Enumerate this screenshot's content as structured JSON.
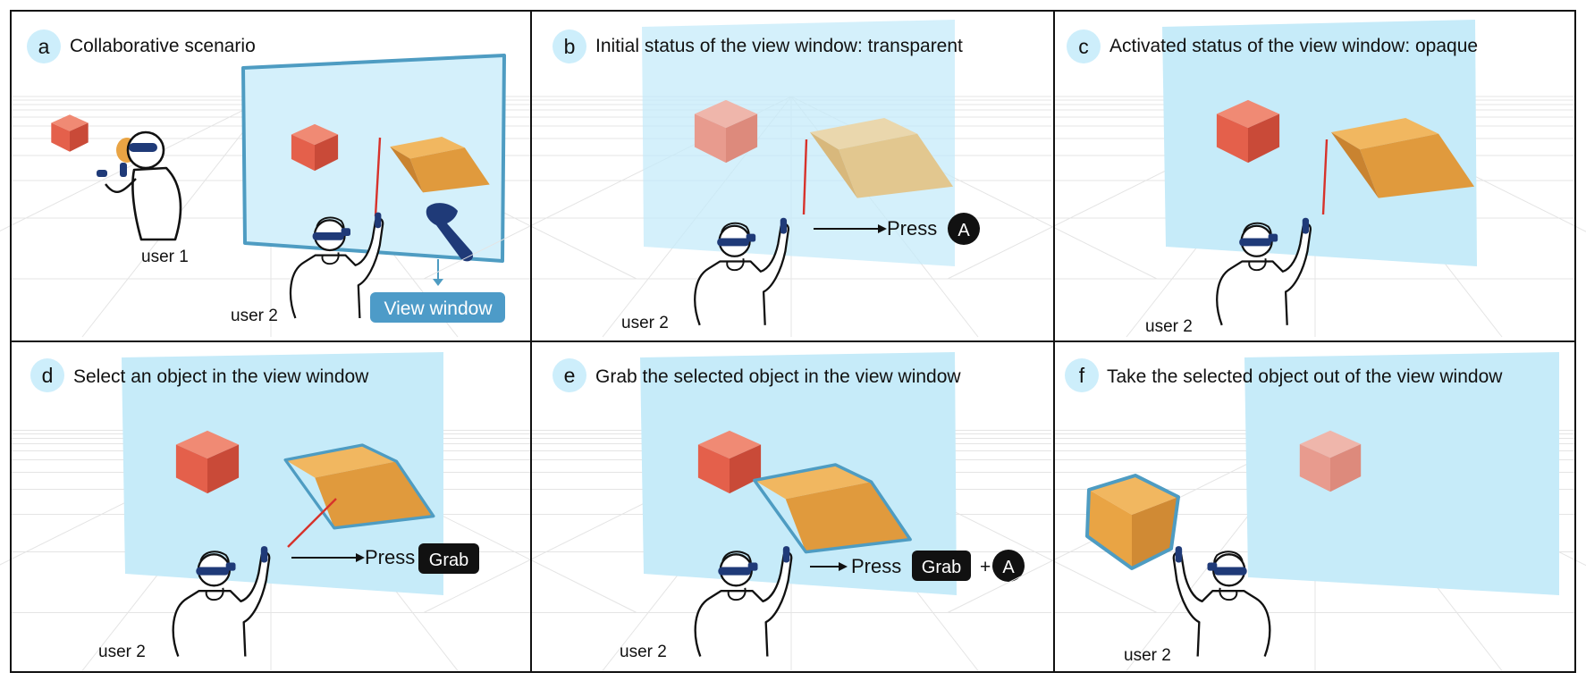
{
  "colors": {
    "badge": "#cdeefb",
    "view_window": "#c6ebf9",
    "frame_stroke": "#4e9cc2",
    "red_cube": "#e4604b",
    "orange_box": "#e9a444",
    "controller": "#1f3a78",
    "ray": "#d7322b",
    "tag_bg": "#4d9bc8",
    "black": "#111111"
  },
  "panels": [
    {
      "id": "a",
      "badge": "a",
      "title": "Collaborative scenario",
      "user_labels": [
        "user 1",
        "user 2"
      ],
      "tag": "View window"
    },
    {
      "id": "b",
      "badge": "b",
      "title": "Initial status of the view window: transparent",
      "user_label": "user 2",
      "action_word": "Press",
      "action_key": "A"
    },
    {
      "id": "c",
      "badge": "c",
      "title": "Activated status of the view window: opaque",
      "user_label": "user 2"
    },
    {
      "id": "d",
      "badge": "d",
      "title": "Select an object in the view window",
      "user_label": "user 2",
      "action_word": "Press",
      "action_key": "Grab"
    },
    {
      "id": "e",
      "badge": "e",
      "title": "Grab the selected object in the view window",
      "user_label": "user 2",
      "action_word": "Press",
      "action_key": "Grab",
      "plus": "+",
      "action_key2": "A"
    },
    {
      "id": "f",
      "badge": "f",
      "title": "Take the selected object out of the view window",
      "user_label": "user 2"
    }
  ]
}
